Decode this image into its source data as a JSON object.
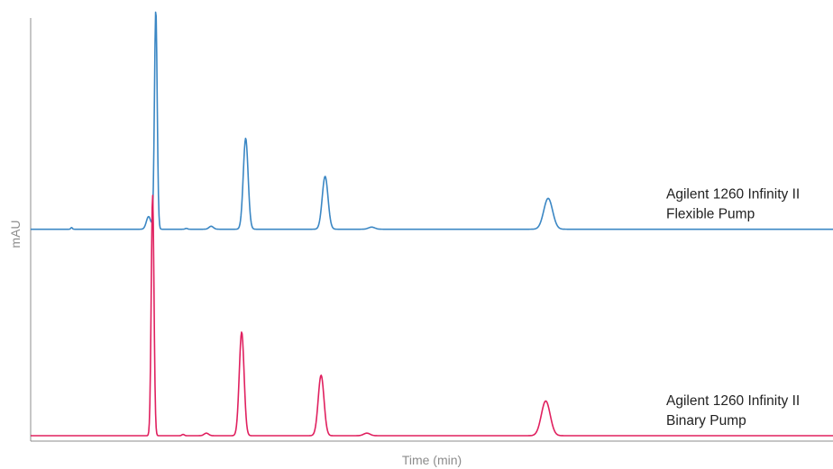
{
  "chart_data": {
    "type": "line",
    "title": "",
    "xlabel": "Time (min)",
    "ylabel": "mAU",
    "x_ticks_shown": false,
    "y_ticks_shown": false,
    "grid": false,
    "x_range": [
      0,
      100
    ],
    "y_range": [
      0,
      100
    ],
    "colors": {
      "axis": "#8c8c8c",
      "axis_label": "#8c8c8c"
    },
    "series": [
      {
        "label_lines": [
          "Agilent 1260 Infinity II",
          "Flexible Pump"
        ],
        "color": "#3b87c4",
        "baseline": 48.8,
        "peaks": [
          {
            "t": 5.1,
            "height": 0.4,
            "width": 0.1
          },
          {
            "t": 14.7,
            "height": 3.0,
            "width": 0.28
          },
          {
            "t": 15.6,
            "height": 52.0,
            "width": 0.17
          },
          {
            "t": 19.4,
            "height": 0.2,
            "width": 0.15
          },
          {
            "t": 22.5,
            "height": 0.7,
            "width": 0.28
          },
          {
            "t": 26.8,
            "height": 21.5,
            "width": 0.3
          },
          {
            "t": 36.7,
            "height": 12.5,
            "width": 0.36
          },
          {
            "t": 42.5,
            "height": 0.5,
            "width": 0.4
          },
          {
            "t": 64.5,
            "height": 7.3,
            "width": 0.55
          }
        ]
      },
      {
        "label_lines": [
          "Agilent 1260 Infinity II",
          "Binary Pump"
        ],
        "color": "#e0205f",
        "baseline": 0,
        "peaks": [
          {
            "t": 15.2,
            "height": 57.0,
            "width": 0.17
          },
          {
            "t": 19.0,
            "height": 0.3,
            "width": 0.15
          },
          {
            "t": 21.9,
            "height": 0.6,
            "width": 0.28
          },
          {
            "t": 26.3,
            "height": 24.5,
            "width": 0.3
          },
          {
            "t": 36.2,
            "height": 14.3,
            "width": 0.36
          },
          {
            "t": 41.9,
            "height": 0.6,
            "width": 0.4
          },
          {
            "t": 64.2,
            "height": 8.2,
            "width": 0.55
          }
        ]
      }
    ]
  }
}
